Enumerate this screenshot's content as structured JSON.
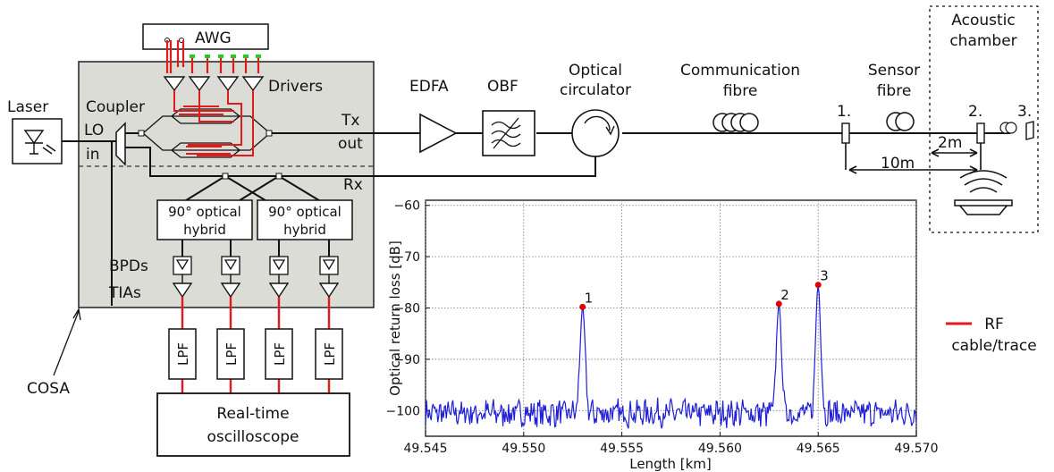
{
  "labels": {
    "awg": "AWG",
    "drivers": "Drivers",
    "laser": "Laser",
    "coupler": "Coupler",
    "lo": "LO",
    "lo_in": "in",
    "tx": "Tx",
    "tx_out": "out",
    "rx": "Rx",
    "hybrid_1a": "90° optical",
    "hybrid_1b": "hybrid",
    "hybrid_2a": "90° optical",
    "hybrid_2b": "hybrid",
    "bpds": "BPDs",
    "tias": "TIAs",
    "lpf": "LPF",
    "scope_1": "Real-time",
    "scope_2": "oscilloscope",
    "cosa": "COSA",
    "edfa": "EDFA",
    "obf": "OBF",
    "circ_1": "Optical",
    "circ_2": "circulator",
    "comm_1": "Communication",
    "comm_2": "fibre",
    "sensor_1": "Sensor",
    "sensor_2": "fibre",
    "acoustic_1": "Acoustic",
    "acoustic_2": "chamber",
    "point_1": "1.",
    "point_2": "2.",
    "point_3": "3.",
    "dist_2m": "2m",
    "dist_10m": "10m",
    "legend_rf_1": "RF",
    "legend_rf_2": "cable/trace"
  },
  "colors": {
    "rf": "#e31a1c",
    "trace": "#1f1fd6",
    "marker": "#e00000",
    "cosa_fill": "#dcdcd6",
    "green_port": "#22cc22"
  },
  "chart_data": {
    "type": "line",
    "xlabel": "Length [km]",
    "ylabel": "Optical return loss [dB]",
    "xlim": [
      49.545,
      49.57
    ],
    "ylim": [
      -105,
      -59
    ],
    "xticks": [
      "49.545",
      "49.550",
      "49.555",
      "49.560",
      "49.565",
      "49.570"
    ],
    "yticks": [
      "−60",
      "−70",
      "−80",
      "−90",
      "−100"
    ],
    "grid": true,
    "noise_floor": -100,
    "peaks": [
      {
        "label": "1",
        "x": 49.553,
        "y": -79.8
      },
      {
        "label": "2",
        "x": 49.563,
        "y": -79.2
      },
      {
        "label": "3",
        "x": 49.565,
        "y": -75.5
      }
    ]
  }
}
